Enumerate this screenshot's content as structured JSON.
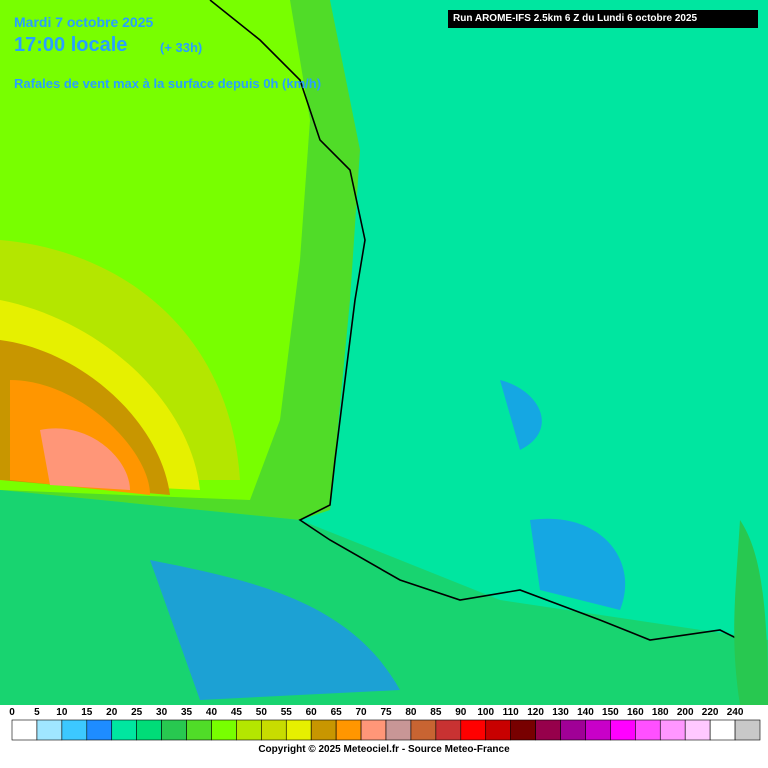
{
  "header": {
    "date": "Mardi 7 octobre 2025",
    "time": "17:00 locale",
    "offset": "(+ 33h)",
    "product": "Rafales de vent max à la surface depuis 0h (km/h)",
    "run": "Run AROME-IFS 2.5km 6 Z du Lundi 6 octobre 2025"
  },
  "legend": {
    "items": [
      {
        "value": 0,
        "color": "#ffffff"
      },
      {
        "value": 5,
        "color": "#a0e6ff"
      },
      {
        "value": 10,
        "color": "#3cc8ff"
      },
      {
        "value": 15,
        "color": "#1e8cff"
      },
      {
        "value": 20,
        "color": "#00e6a0"
      },
      {
        "value": 25,
        "color": "#00dc78"
      },
      {
        "value": 30,
        "color": "#28c850"
      },
      {
        "value": 35,
        "color": "#50dc28"
      },
      {
        "value": 40,
        "color": "#78ff00"
      },
      {
        "value": 45,
        "color": "#b4e600"
      },
      {
        "value": 50,
        "color": "#c8dc00"
      },
      {
        "value": 55,
        "color": "#e6f000"
      },
      {
        "value": 60,
        "color": "#c89600"
      },
      {
        "value": 65,
        "color": "#ff9600"
      },
      {
        "value": 70,
        "color": "#ff9678"
      },
      {
        "value": 75,
        "color": "#c89696"
      },
      {
        "value": 80,
        "color": "#c86432"
      },
      {
        "value": 85,
        "color": "#c83232"
      },
      {
        "value": 90,
        "color": "#ff0000"
      },
      {
        "value": 100,
        "color": "#c80000"
      },
      {
        "value": 110,
        "color": "#780000"
      },
      {
        "value": 120,
        "color": "#96004b"
      },
      {
        "value": 130,
        "color": "#a00096"
      },
      {
        "value": 140,
        "color": "#c800c8"
      },
      {
        "value": 150,
        "color": "#ff00ff"
      },
      {
        "value": 160,
        "color": "#ff50ff"
      },
      {
        "value": 180,
        "color": "#ff96ff"
      },
      {
        "value": 200,
        "color": "#ffc8ff"
      },
      {
        "value": 220,
        "color": "#ffffff"
      },
      {
        "value": 240,
        "color": "#c8c8c8"
      }
    ]
  },
  "footer": {
    "copyright": "Copyright © 2025 Meteociel.fr - Source Meteo-France"
  }
}
